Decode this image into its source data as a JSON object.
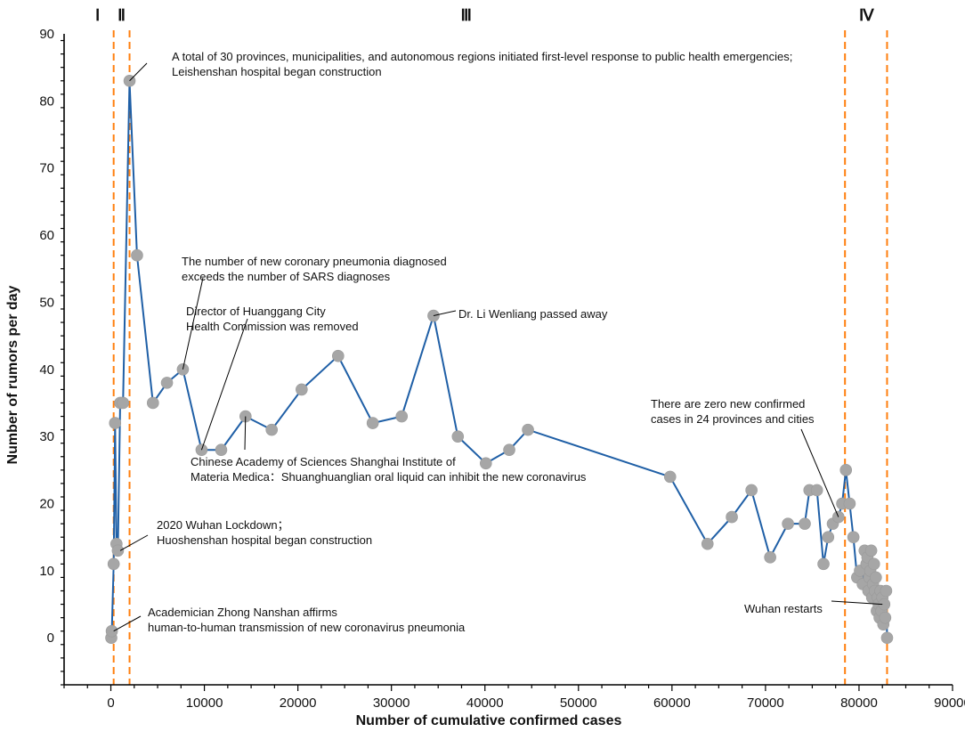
{
  "chart_data": {
    "type": "line",
    "title": "",
    "xlabel": "Number of cumulative confirmed cases",
    "ylabel": "Number of rumors per day",
    "xlim": [
      -5000,
      90000
    ],
    "ylim": [
      -7,
      90
    ],
    "xticks": [
      0,
      10000,
      20000,
      30000,
      40000,
      50000,
      60000,
      70000,
      80000,
      90000
    ],
    "yticks": [
      0,
      10,
      20,
      30,
      40,
      50,
      60,
      70,
      80,
      90
    ],
    "xtick_labels": [
      "0",
      "10000",
      "20000",
      "30000",
      "40000",
      "50000",
      "60000",
      "70000",
      "80000",
      "90000"
    ],
    "ytick_labels": [
      "0",
      "10",
      "20",
      "30",
      "40",
      "50",
      "60",
      "70",
      "80",
      "90"
    ],
    "grid": false,
    "line_color": "#1f5fa6",
    "marker_color": "#a6a6a6",
    "phase_line_color": "#ff7f0e",
    "phases": [
      {
        "label": "Ⅰ",
        "x": 300
      },
      {
        "label": "Ⅱ",
        "x": 2000
      },
      {
        "label": "Ⅲ",
        "x": 38000
      },
      {
        "label": "Ⅳ",
        "x": 80800
      }
    ],
    "phase_boundaries": [
      300,
      2000,
      78500,
      83000
    ],
    "x": [
      45,
      100,
      300,
      450,
      600,
      750,
      1000,
      1300,
      2000,
      2800,
      4500,
      6000,
      7700,
      9700,
      11800,
      14400,
      17200,
      20400,
      24300,
      28000,
      31100,
      34500,
      37100,
      40100,
      42600,
      44600,
      59800,
      63800,
      66400,
      68500,
      70500,
      72400,
      74200,
      74700,
      75500,
      76200,
      76700,
      77200,
      77800,
      78200,
      78600,
      79000,
      79400,
      79800,
      80100,
      80400,
      80600,
      80800,
      80900,
      81000,
      81100,
      81200,
      81300,
      81400,
      81500,
      81600,
      81700,
      81800,
      81900,
      82000,
      82100,
      82200,
      82300,
      82400,
      82500,
      82600,
      82700,
      82800,
      82900,
      83000
    ],
    "y": [
      0,
      1,
      11,
      32,
      14,
      13,
      35,
      35,
      83,
      57,
      35,
      38,
      40,
      28,
      28,
      33,
      31,
      37,
      42,
      32,
      33,
      48,
      30,
      26,
      28,
      31,
      24,
      14,
      18,
      22,
      12,
      17,
      17,
      22,
      22,
      11,
      15,
      17,
      18,
      20,
      25,
      20,
      15,
      9,
      10,
      8,
      13,
      11,
      12,
      7,
      9,
      10,
      13,
      6,
      8,
      11,
      7,
      9,
      4,
      6,
      5,
      3,
      7,
      4,
      6,
      2,
      5,
      3,
      7,
      0
    ],
    "annotations": [
      {
        "lines": [
          "A total of 30 provinces, municipalities, and autonomous regions initiated first-level response to public health emergencies;",
          "Leishenshan hospital began construction"
        ]
      },
      {
        "lines": [
          "The number of new coronary pneumonia diagnosed",
          "exceeds the number of SARS diagnoses"
        ]
      },
      {
        "lines": [
          "Director of Huanggang City",
          "Health Commission was removed"
        ]
      },
      {
        "lines": [
          "Dr. Li Wenliang passed away"
        ]
      },
      {
        "lines": [
          "There are zero new confirmed",
          "cases in 24 provinces and cities"
        ]
      },
      {
        "lines": [
          "Chinese Academy of Sciences Shanghai Institute of",
          "Materia Medica：Shuanghuanglian oral liquid can inhibit the new coronavirus"
        ]
      },
      {
        "lines": [
          "2020 Wuhan Lockdown；",
          "Huoshenshan hospital began construction"
        ]
      },
      {
        "lines": [
          "Academician Zhong Nanshan affirms",
          "human-to-human transmission of new coronavirus pneumonia"
        ]
      },
      {
        "lines": [
          "Wuhan restarts"
        ]
      }
    ]
  }
}
